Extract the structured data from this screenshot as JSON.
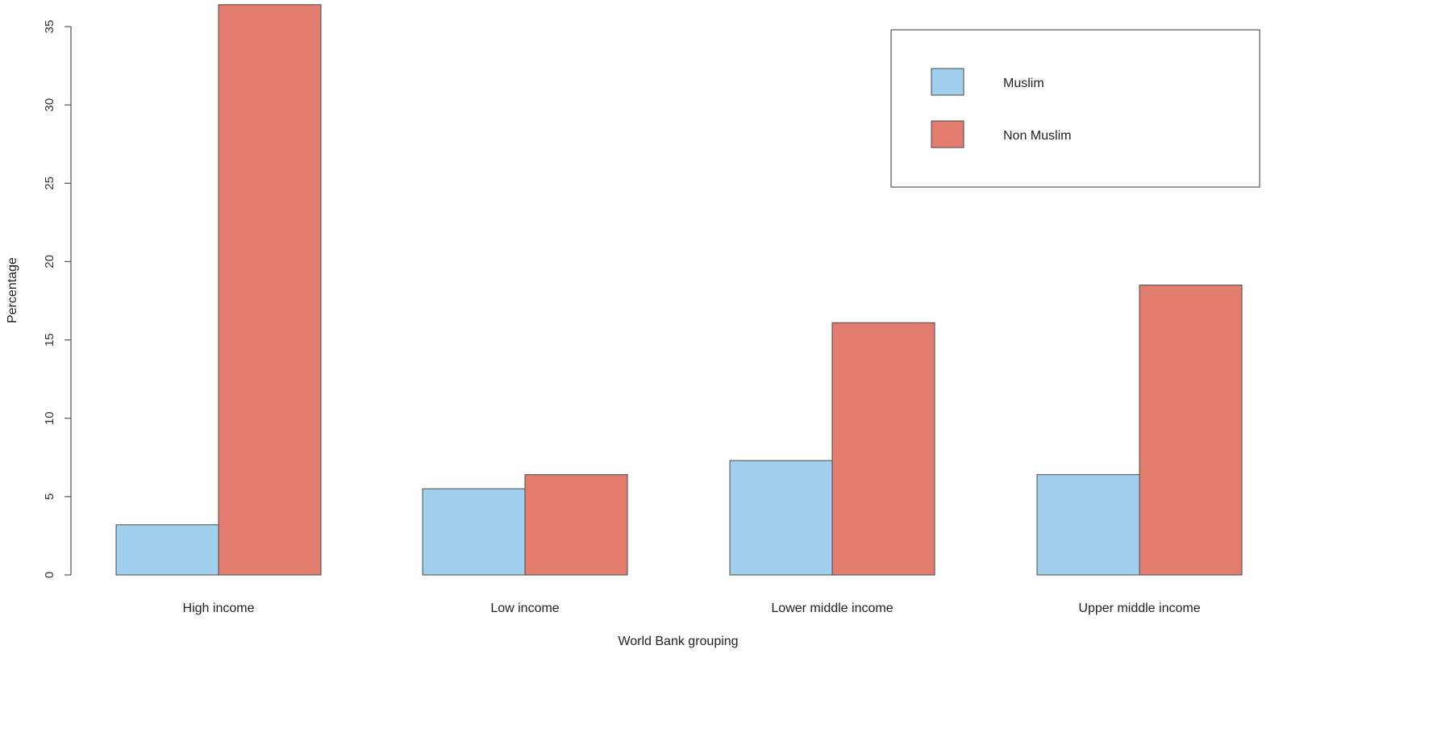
{
  "chart_data": {
    "type": "bar",
    "title": "",
    "xlabel": "World Bank grouping",
    "ylabel": "Percentage",
    "categories": [
      "High income",
      "Low income",
      "Lower middle income",
      "Upper middle income"
    ],
    "series": [
      {
        "name": "Muslim",
        "color": "#A1D0EE",
        "values": [
          3.2,
          5.5,
          7.3,
          6.4
        ]
      },
      {
        "name": "Non Muslim",
        "color": "#E27C6E",
        "values": [
          36.4,
          6.4,
          16.1,
          18.5
        ]
      }
    ],
    "yticks": [
      0,
      5,
      10,
      15,
      20,
      25,
      30,
      35
    ],
    "ylim": [
      0,
      35
    ],
    "grid": false,
    "legend_position": "top-right",
    "bar_mode": "grouped"
  },
  "legend": {
    "items": [
      {
        "label": "Muslim",
        "color": "#A1D0EE"
      },
      {
        "label": "Non Muslim",
        "color": "#E27C6E"
      }
    ]
  }
}
